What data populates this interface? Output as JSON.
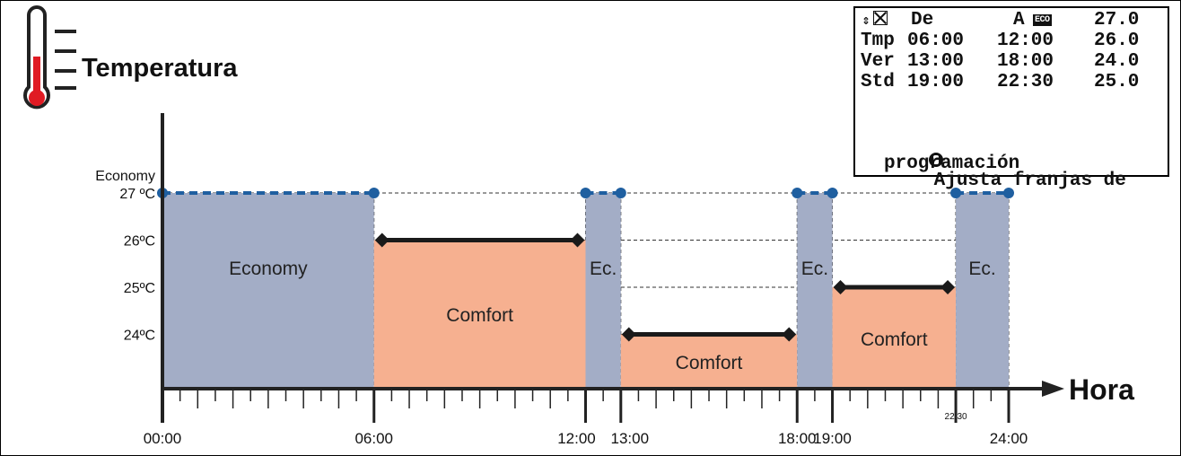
{
  "header": {
    "title": "Temperatura"
  },
  "lcd": {
    "header": {
      "col1": "De",
      "col2": "A",
      "badge": "ECO",
      "value": "27.0"
    },
    "rows": [
      {
        "label": "Tmp",
        "from": "06:00",
        "to": "12:00",
        "temp": "26.0"
      },
      {
        "label": "Ver",
        "from": "13:00",
        "to": "18:00",
        "temp": "24.0"
      },
      {
        "label": "Std",
        "from": "19:00",
        "to": "22:30",
        "temp": "25.0"
      }
    ],
    "message_line1": "Ajusta franjas de",
    "message_line2": "programación"
  },
  "chart_data": {
    "type": "area",
    "title": "Temperatura",
    "xlabel": "Hora",
    "ylabel": "",
    "xlim": [
      0,
      24
    ],
    "y_tick_labels": [
      "27 ºC",
      "26ºC",
      "25ºC",
      "24ºC"
    ],
    "y_tick_values": [
      27,
      26,
      25,
      24
    ],
    "economy_axis_label": "Economy",
    "x_tick_labels": [
      {
        "x": 0,
        "label": "00:00"
      },
      {
        "x": 6,
        "label": "06:00"
      },
      {
        "x": 12,
        "label": "12:00"
      },
      {
        "x": 13,
        "label": "13:00"
      },
      {
        "x": 18,
        "label": "18:00"
      },
      {
        "x": 19,
        "label": "19:00"
      },
      {
        "x": 22.5,
        "label": "22:30"
      },
      {
        "x": 24,
        "label": "24:00"
      }
    ],
    "segments": [
      {
        "mode": "Economy",
        "label": "Economy",
        "start": 0,
        "end": 6,
        "temp": 27
      },
      {
        "mode": "Comfort",
        "label": "Comfort",
        "start": 6,
        "end": 12,
        "temp": 26
      },
      {
        "mode": "Economy",
        "label": "Ec.",
        "start": 12,
        "end": 13,
        "temp": 27
      },
      {
        "mode": "Comfort",
        "label": "Comfort",
        "start": 13,
        "end": 18,
        "temp": 24
      },
      {
        "mode": "Economy",
        "label": "Ec.",
        "start": 18,
        "end": 19,
        "temp": 27
      },
      {
        "mode": "Comfort",
        "label": "Comfort",
        "start": 19,
        "end": 22.5,
        "temp": 25
      },
      {
        "mode": "Economy",
        "label": "Ec.",
        "start": 22.5,
        "end": 24,
        "temp": 27
      }
    ],
    "colors": {
      "economy": "#a3adc6",
      "comfort": "#f6b090",
      "economy_line": "#1f5fa0",
      "comfort_line": "#1a1a1a"
    }
  }
}
